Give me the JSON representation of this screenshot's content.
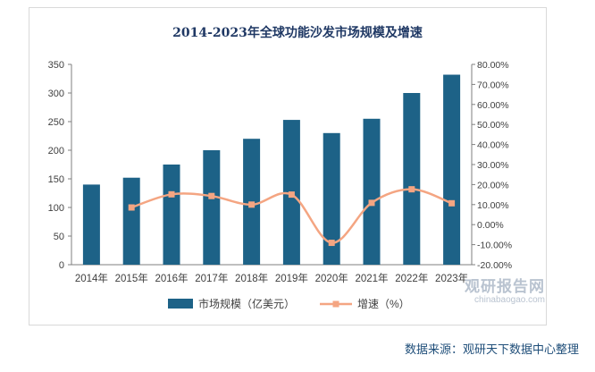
{
  "chart_data": {
    "type": "bar",
    "title": "2014-2023年全球功能沙发市场规模及增速",
    "categories": [
      "2014年",
      "2015年",
      "2016年",
      "2017年",
      "2018年",
      "2019年",
      "2020年",
      "2021年",
      "2022年",
      "2023年"
    ],
    "series": [
      {
        "name": "市场规模（亿美元）",
        "type": "bar",
        "axis": "left",
        "color": "#1d6287",
        "values": [
          140,
          152,
          175,
          200,
          220,
          253,
          230,
          255,
          300,
          332
        ]
      },
      {
        "name": "增速（%）",
        "type": "line",
        "axis": "right",
        "color": "#f4a582",
        "values": [
          null,
          8.57,
          15.13,
          14.29,
          10.0,
          15.0,
          -9.09,
          10.87,
          17.65,
          10.67
        ]
      }
    ],
    "y_left": {
      "min": 0,
      "max": 350,
      "ticks": [
        0,
        50,
        100,
        150,
        200,
        250,
        300,
        350
      ],
      "tick_labels": [
        "0",
        "50",
        "100",
        "150",
        "200",
        "250",
        "300",
        "350"
      ]
    },
    "y_right": {
      "min": -20,
      "max": 80,
      "ticks": [
        -20,
        -10,
        0,
        10,
        20,
        30,
        40,
        50,
        60,
        70,
        80
      ],
      "tick_labels": [
        "-20.00%",
        "-10.00%",
        "0.00%",
        "10.00%",
        "20.00%",
        "30.00%",
        "40.00%",
        "50.00%",
        "60.00%",
        "70.00%",
        "80.00%"
      ]
    },
    "grid": false,
    "legend": "bottom",
    "line_smooth": true
  },
  "watermark": {
    "cn": "观研报告网",
    "en": "chinabaogao.com"
  },
  "source": "数据来源：观研天下数据中心整理"
}
